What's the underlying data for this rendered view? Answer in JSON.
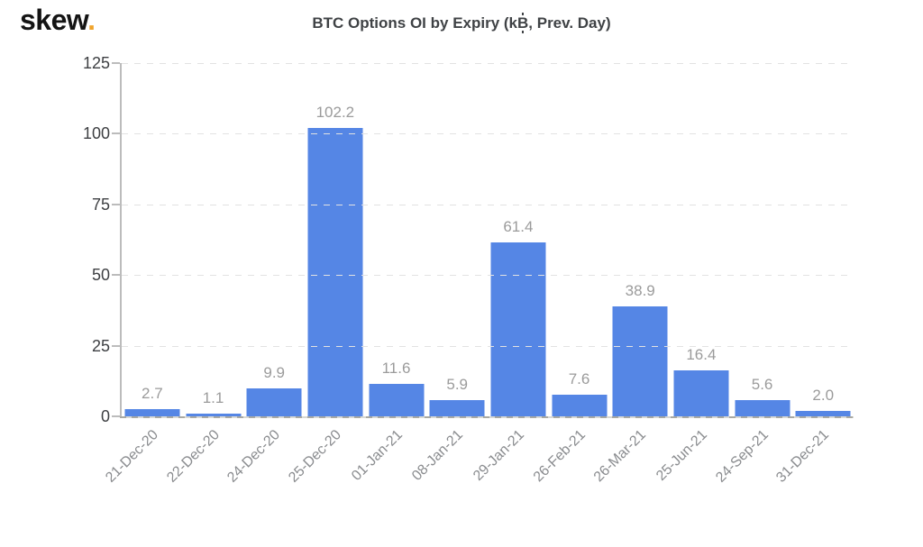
{
  "logo": {
    "text": "skew",
    "dot": "."
  },
  "title_render": {
    "prefix": "BTC Options OI by Expiry (k",
    "symbol": "B",
    "suffix": ", Prev. Day)"
  },
  "chart_data": {
    "type": "bar",
    "title": "BTC Options OI by Expiry (k₿, Prev. Day)",
    "categories": [
      "21-Dec-20",
      "22-Dec-20",
      "24-Dec-20",
      "25-Dec-20",
      "01-Jan-21",
      "08-Jan-21",
      "29-Jan-21",
      "26-Feb-21",
      "26-Mar-21",
      "25-Jun-21",
      "24-Sep-21",
      "31-Dec-21"
    ],
    "values": [
      2.7,
      1.1,
      9.9,
      102.2,
      11.6,
      5.9,
      61.4,
      7.6,
      38.9,
      16.4,
      5.6,
      2.0
    ],
    "xlabel": "",
    "ylabel": "",
    "ylim": [
      0,
      125
    ],
    "yticks": [
      0,
      25,
      50,
      75,
      100,
      125
    ],
    "grid": "horizontal-dashed",
    "legend": "none",
    "bar_color": "#5586e5"
  },
  "colors": {
    "background": "#ffffff",
    "bar": "#5586e5",
    "logo_dot": "#f0a32a",
    "title_text": "#3f4245",
    "value_label": "#9b9b9b",
    "x_axis_label": "#8a8c8f",
    "y_axis_label": "#3e4043",
    "gridline": "#e2e2e2",
    "axis_line": "#bcbcbc"
  }
}
